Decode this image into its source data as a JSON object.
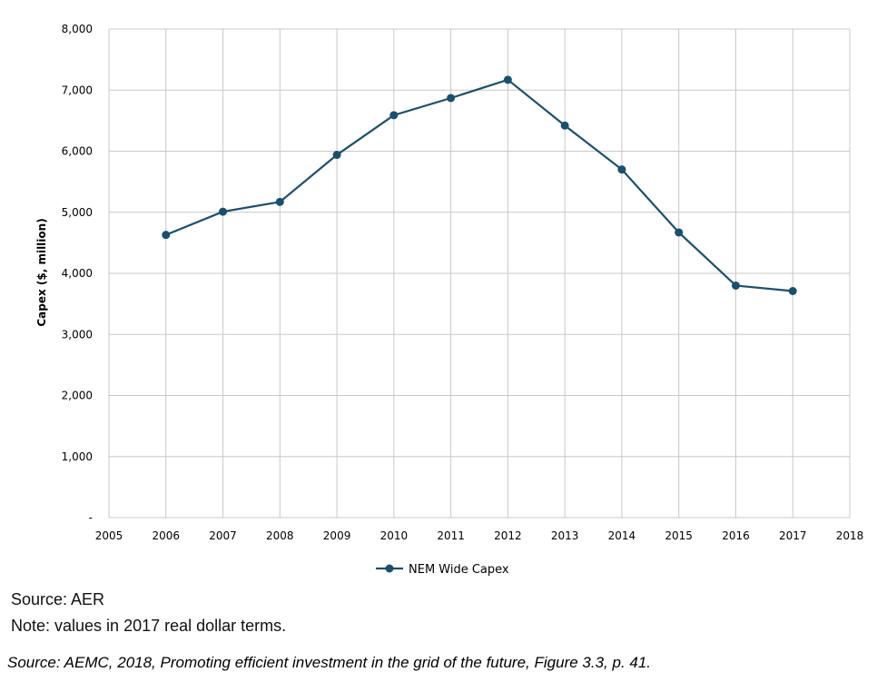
{
  "chart_data": {
    "type": "line",
    "title": "",
    "xlabel": "",
    "ylabel": "Capex ($, million)",
    "x_ticks": [
      "2005",
      "2006",
      "2007",
      "2008",
      "2009",
      "2010",
      "2011",
      "2012",
      "2013",
      "2014",
      "2015",
      "2016",
      "2017",
      "2018"
    ],
    "y_ticks": [
      "-",
      "1,000",
      "2,000",
      "3,000",
      "4,000",
      "5,000",
      "6,000",
      "7,000",
      "8,000"
    ],
    "xlim": [
      2005,
      2018
    ],
    "ylim": [
      0,
      8000
    ],
    "grid": true,
    "legend_position": "bottom-center",
    "series": [
      {
        "name": "NEM Wide Capex",
        "color": "#1b4f6e",
        "x": [
          2006,
          2007,
          2008,
          2009,
          2010,
          2011,
          2012,
          2013,
          2014,
          2015,
          2016,
          2017
        ],
        "y": [
          4630,
          5010,
          5170,
          5940,
          6590,
          6870,
          7170,
          6420,
          5700,
          4670,
          3800,
          3710
        ]
      }
    ]
  },
  "notes": {
    "source": "Source: AER",
    "values": "Note: values in 2017 real dollar terms.",
    "citation": "Source: AEMC, 2018, Promoting efficient investment in the grid of the future, Figure 3.3, p. 41."
  }
}
